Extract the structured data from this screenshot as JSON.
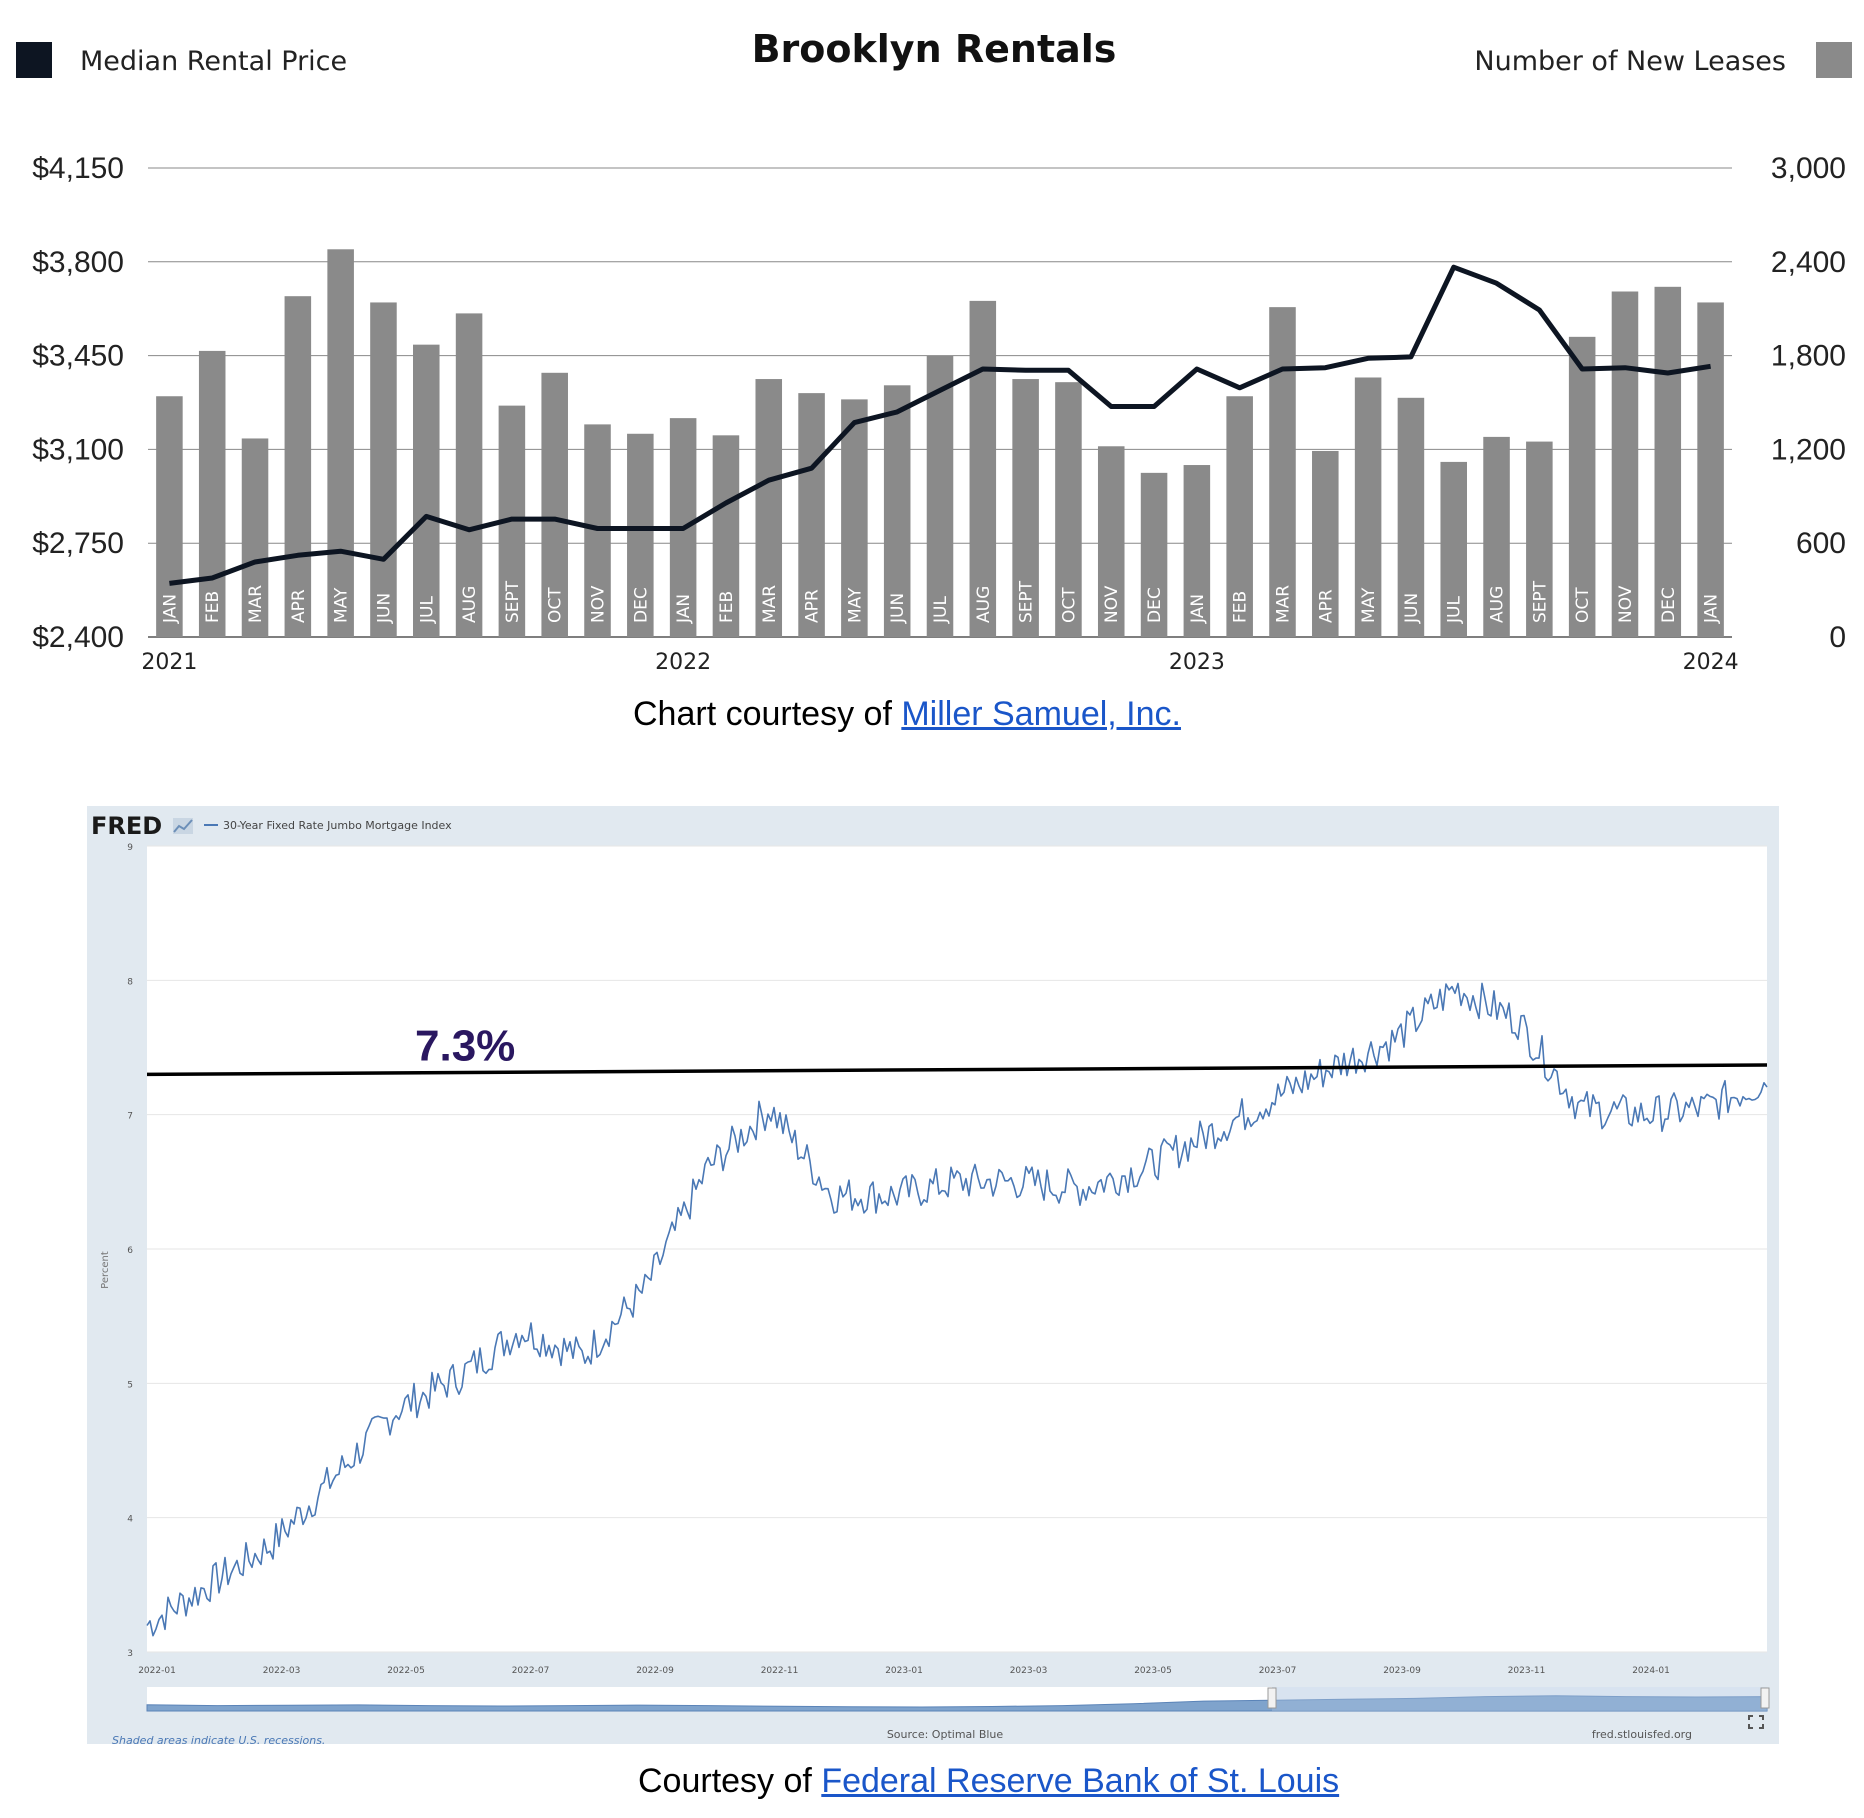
{
  "captions": {
    "chart1_prefix": "Chart courtesy of ",
    "chart1_link": "Miller Samuel, Inc.",
    "chart2_prefix": "Courtesy of ",
    "chart2_link": "Federal Reserve Bank of St. Louis"
  },
  "chart_data": [
    {
      "type": "bar",
      "title": "Brooklyn Rentals",
      "legend": {
        "left": "Median Rental Price",
        "right": "Number of New Leases",
        "left_color": "#0d1522",
        "right_color": "#8a8a8a"
      },
      "categories": [
        "JAN",
        "FEB",
        "MAR",
        "APR",
        "MAY",
        "JUN",
        "JUL",
        "AUG",
        "SEPT",
        "OCT",
        "NOV",
        "DEC",
        "JAN",
        "FEB",
        "MAR",
        "APR",
        "MAY",
        "JUN",
        "JUL",
        "AUG",
        "SEPT",
        "OCT",
        "NOV",
        "DEC",
        "JAN",
        "FEB",
        "MAR",
        "APR",
        "MAY",
        "JUN",
        "JUL",
        "AUG",
        "SEPT",
        "OCT",
        "NOV",
        "DEC",
        "JAN"
      ],
      "year_labels": [
        {
          "label": "2021",
          "index": 0
        },
        {
          "label": "2022",
          "index": 12
        },
        {
          "label": "2023",
          "index": 24
        },
        {
          "label": "2024",
          "index": 36
        }
      ],
      "series": [
        {
          "name": "Number of New Leases",
          "kind": "bar",
          "axis": "right",
          "color": "#8a8a8a",
          "values": [
            1540,
            1830,
            1270,
            2180,
            2480,
            2140,
            1870,
            2070,
            1480,
            1690,
            1360,
            1300,
            1400,
            1290,
            1650,
            1560,
            1520,
            1610,
            1800,
            2150,
            1650,
            1630,
            1220,
            1050,
            1100,
            1540,
            2110,
            1190,
            1660,
            1530,
            1120,
            1280,
            1250,
            1920,
            2210,
            2240,
            2140
          ]
        },
        {
          "name": "Median Rental Price",
          "kind": "line",
          "axis": "left",
          "color": "#0d1522",
          "values": [
            2600,
            2620,
            2680,
            2705,
            2720,
            2690,
            2850,
            2800,
            2840,
            2840,
            2805,
            2805,
            2805,
            2900,
            2985,
            3030,
            3200,
            3240,
            3320,
            3400,
            3395,
            3395,
            3260,
            3260,
            3400,
            3330,
            3400,
            3405,
            3440,
            3445,
            3780,
            3720,
            3620,
            3400,
            3405,
            3385,
            3410
          ]
        }
      ],
      "y_left": {
        "lim": [
          2400,
          4150
        ],
        "ticks": [
          "$2,400",
          "$2,750",
          "$3,100",
          "$3,450",
          "$3,800",
          "$4,150"
        ],
        "tick_values": [
          2400,
          2750,
          3100,
          3450,
          3800,
          4150
        ]
      },
      "y_right": {
        "lim": [
          0,
          3000
        ],
        "ticks": [
          "0",
          "600",
          "1,200",
          "1,800",
          "2,400",
          "3,000"
        ],
        "tick_values": [
          0,
          600,
          1200,
          1800,
          2400,
          3000
        ]
      },
      "grid": true
    },
    {
      "type": "line",
      "source_brand": "FRED",
      "legend": "30-Year Fixed Rate Jumbo Mortgage Index",
      "ylabel": "Percent",
      "ylim": [
        3,
        9
      ],
      "yticks": [
        "3",
        "4",
        "5",
        "6",
        "7",
        "8",
        "9"
      ],
      "xticks": [
        "2022-01",
        "2022-03",
        "2022-05",
        "2022-07",
        "2022-09",
        "2022-11",
        "2023-01",
        "2023-03",
        "2023-05",
        "2023-07",
        "2023-09",
        "2023-11",
        "2024-01"
      ],
      "line_color": "#4a78b5",
      "annotation": {
        "label": "7.3%",
        "value_start": 7.3,
        "value_end": 7.37,
        "color": "#2a1760"
      },
      "x": [
        "2022-01",
        "2022-02",
        "2022-03",
        "2022-04",
        "2022-05",
        "2022-06",
        "2022-07",
        "2022-08",
        "2022-09",
        "2022-10",
        "2022-11",
        "2022-12",
        "2023-01",
        "2023-02",
        "2023-03",
        "2023-04",
        "2023-05",
        "2023-06",
        "2023-07",
        "2023-08",
        "2023-09",
        "2023-10",
        "2023-11",
        "2023-12",
        "2024-01",
        "2024-02",
        "2024-03"
      ],
      "values": [
        3.2,
        3.5,
        3.8,
        4.3,
        4.8,
        5.05,
        5.4,
        5.2,
        5.7,
        6.6,
        7.05,
        6.4,
        6.4,
        6.5,
        6.5,
        6.45,
        6.6,
        6.85,
        7.1,
        7.35,
        7.55,
        7.95,
        7.7,
        7.05,
        7.0,
        7.05,
        7.25
      ],
      "footer": {
        "recession_note": "Shaded areas indicate U.S. recessions.",
        "source": "Source: Optimal Blue",
        "site": "fred.stlouisfed.org"
      }
    }
  ]
}
